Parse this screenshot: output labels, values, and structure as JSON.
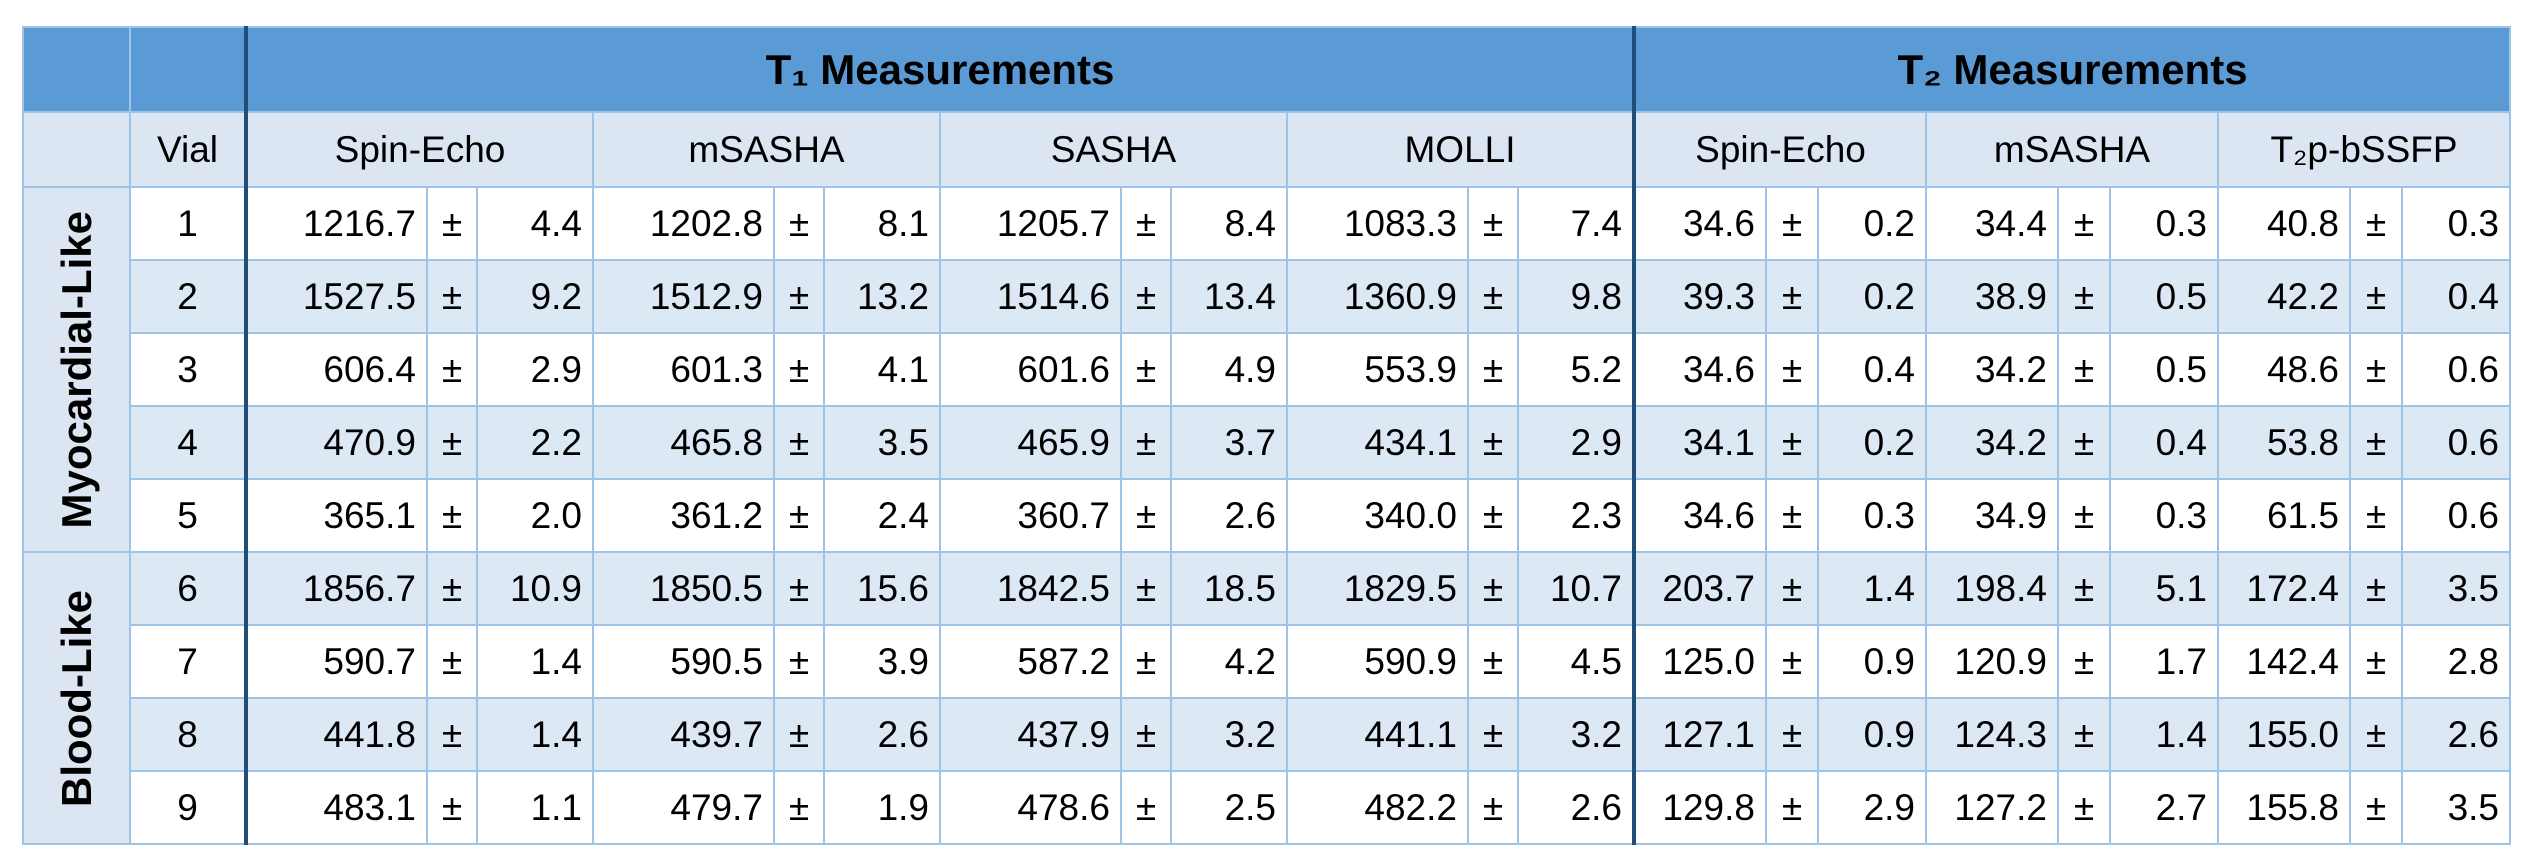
{
  "table": {
    "vial_header": "Vial",
    "separator": "±",
    "groups": [
      {
        "title": "T₁ Measurements",
        "methods": [
          "Spin-Echo",
          "mSASHA",
          "SASHA",
          "MOLLI"
        ]
      },
      {
        "title": "T₂ Measurements",
        "methods": [
          "Spin-Echo",
          "mSASHA",
          "T₂p-bSSFP"
        ]
      }
    ],
    "sections": [
      {
        "label": "Myocardial-Like",
        "rows": [
          {
            "vial": "1",
            "cells": [
              [
                "1216.7",
                "4.4"
              ],
              [
                "1202.8",
                "8.1"
              ],
              [
                "1205.7",
                "8.4"
              ],
              [
                "1083.3",
                "7.4"
              ],
              [
                "34.6",
                "0.2"
              ],
              [
                "34.4",
                "0.3"
              ],
              [
                "40.8",
                "0.3"
              ]
            ]
          },
          {
            "vial": "2",
            "cells": [
              [
                "1527.5",
                "9.2"
              ],
              [
                "1512.9",
                "13.2"
              ],
              [
                "1514.6",
                "13.4"
              ],
              [
                "1360.9",
                "9.8"
              ],
              [
                "39.3",
                "0.2"
              ],
              [
                "38.9",
                "0.5"
              ],
              [
                "42.2",
                "0.4"
              ]
            ]
          },
          {
            "vial": "3",
            "cells": [
              [
                "606.4",
                "2.9"
              ],
              [
                "601.3",
                "4.1"
              ],
              [
                "601.6",
                "4.9"
              ],
              [
                "553.9",
                "5.2"
              ],
              [
                "34.6",
                "0.4"
              ],
              [
                "34.2",
                "0.5"
              ],
              [
                "48.6",
                "0.6"
              ]
            ]
          },
          {
            "vial": "4",
            "cells": [
              [
                "470.9",
                "2.2"
              ],
              [
                "465.8",
                "3.5"
              ],
              [
                "465.9",
                "3.7"
              ],
              [
                "434.1",
                "2.9"
              ],
              [
                "34.1",
                "0.2"
              ],
              [
                "34.2",
                "0.4"
              ],
              [
                "53.8",
                "0.6"
              ]
            ]
          },
          {
            "vial": "5",
            "cells": [
              [
                "365.1",
                "2.0"
              ],
              [
                "361.2",
                "2.4"
              ],
              [
                "360.7",
                "2.6"
              ],
              [
                "340.0",
                "2.3"
              ],
              [
                "34.6",
                "0.3"
              ],
              [
                "34.9",
                "0.3"
              ],
              [
                "61.5",
                "0.6"
              ]
            ]
          }
        ]
      },
      {
        "label": "Blood-Like",
        "rows": [
          {
            "vial": "6",
            "cells": [
              [
                "1856.7",
                "10.9"
              ],
              [
                "1850.5",
                "15.6"
              ],
              [
                "1842.5",
                "18.5"
              ],
              [
                "1829.5",
                "10.7"
              ],
              [
                "203.7",
                "1.4"
              ],
              [
                "198.4",
                "5.1"
              ],
              [
                "172.4",
                "3.5"
              ]
            ]
          },
          {
            "vial": "7",
            "cells": [
              [
                "590.7",
                "1.4"
              ],
              [
                "590.5",
                "3.9"
              ],
              [
                "587.2",
                "4.2"
              ],
              [
                "590.9",
                "4.5"
              ],
              [
                "125.0",
                "0.9"
              ],
              [
                "120.9",
                "1.7"
              ],
              [
                "142.4",
                "2.8"
              ]
            ]
          },
          {
            "vial": "8",
            "cells": [
              [
                "441.8",
                "1.4"
              ],
              [
                "439.7",
                "2.6"
              ],
              [
                "437.9",
                "3.2"
              ],
              [
                "441.1",
                "3.2"
              ],
              [
                "127.1",
                "0.9"
              ],
              [
                "124.3",
                "1.4"
              ],
              [
                "155.0",
                "2.6"
              ]
            ]
          },
          {
            "vial": "9",
            "cells": [
              [
                "483.1",
                "1.1"
              ],
              [
                "479.7",
                "1.9"
              ],
              [
                "478.6",
                "2.5"
              ],
              [
                "482.2",
                "2.6"
              ],
              [
                "129.8",
                "2.9"
              ],
              [
                "127.2",
                "2.7"
              ],
              [
                "155.8",
                "3.5"
              ]
            ]
          }
        ]
      }
    ]
  }
}
